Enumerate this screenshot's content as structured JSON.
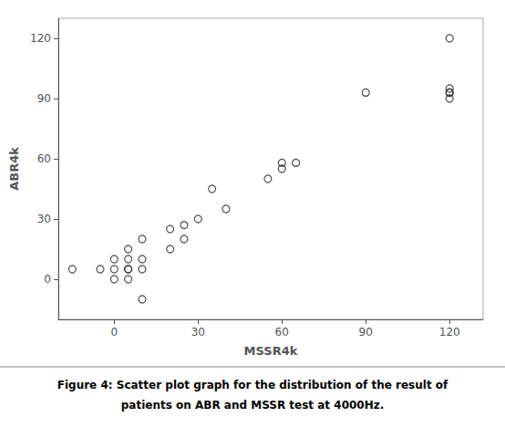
{
  "chart_data": {
    "type": "scatter",
    "xlabel": "MSSR4k",
    "ylabel": "ABR4k",
    "annotations": [
      "Figure 4: Scatter plot graph for the distribution of the result of",
      "patients on ABR and MSSR test at 4000Hz."
    ],
    "x": [
      -15,
      -5,
      0,
      0,
      0,
      5,
      5,
      5,
      5,
      5,
      10,
      10,
      10,
      10,
      20,
      20,
      25,
      25,
      30,
      35,
      40,
      55,
      60,
      60,
      65,
      90,
      120,
      120,
      120,
      120,
      120
    ],
    "values": [
      5,
      5,
      0,
      5,
      10,
      5,
      10,
      15,
      0,
      5,
      10,
      20,
      5,
      -10,
      15,
      25,
      27,
      20,
      30,
      45,
      35,
      50,
      55,
      58,
      58,
      93,
      93,
      90,
      93,
      95,
      120
    ],
    "xlim": [
      -20,
      132
    ],
    "ylim": [
      -20,
      130
    ],
    "xticks": [
      0,
      30,
      60,
      90,
      120
    ],
    "yticks": [
      0,
      30,
      60,
      90,
      120
    ],
    "color": "#222222",
    "marker": "circle",
    "grid": false
  }
}
